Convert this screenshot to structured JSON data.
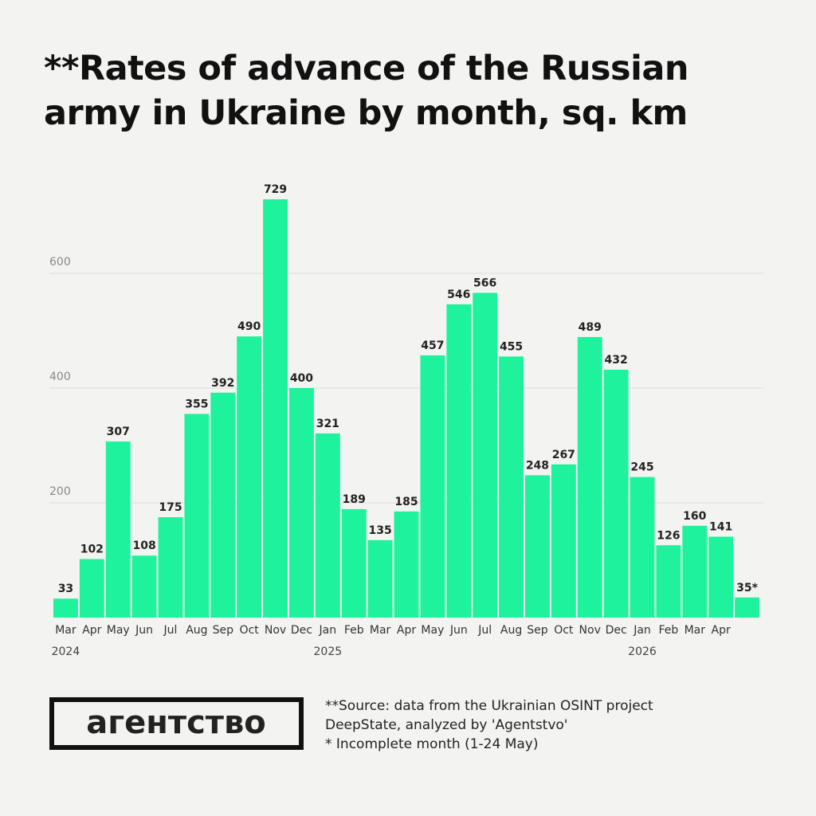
{
  "chart_data": {
    "type": "bar",
    "title": "**Rates of advance of the Russian army in Ukraine by month, sq. km",
    "categories": [
      "Mar",
      "Apr",
      "May",
      "Jun",
      "Jul",
      "Aug",
      "Sep",
      "Oct",
      "Nov",
      "Dec",
      "Jan",
      "Feb",
      "Mar",
      "Apr",
      "May",
      "Jun",
      "Jul",
      "Aug",
      "Sep",
      "Oct",
      "Nov",
      "Dec",
      "Jan",
      "Feb",
      "Mar",
      "Apr",
      null
    ],
    "years": [
      "2024",
      null,
      null,
      null,
      null,
      null,
      null,
      null,
      null,
      null,
      "2025",
      null,
      null,
      null,
      null,
      null,
      null,
      null,
      null,
      null,
      null,
      null,
      "2026",
      null,
      null,
      null,
      null
    ],
    "values": [
      33,
      102,
      307,
      108,
      175,
      355,
      392,
      490,
      729,
      400,
      321,
      189,
      135,
      185,
      457,
      546,
      566,
      455,
      248,
      267,
      489,
      432,
      245,
      126,
      160,
      141,
      35
    ],
    "value_labels": [
      "33",
      "102",
      "307",
      "108",
      "175",
      "355",
      "392",
      "490",
      "729",
      "400",
      "321",
      "189",
      "135",
      "185",
      "457",
      "546",
      "566",
      "455",
      "248",
      "267",
      "489",
      "432",
      "245",
      "126",
      "160",
      "141",
      "35*"
    ],
    "color": "#1ef29c",
    "ylim": [
      0,
      750
    ],
    "yticks": [
      200,
      400,
      600
    ],
    "grid": true,
    "logo": "агентство",
    "notes": [
      "**Source: data from the Ukrainian OSINT project",
      "DeepState, analyzed by 'Agentstvo'",
      "* Incomplete month (1-24 May)"
    ]
  }
}
